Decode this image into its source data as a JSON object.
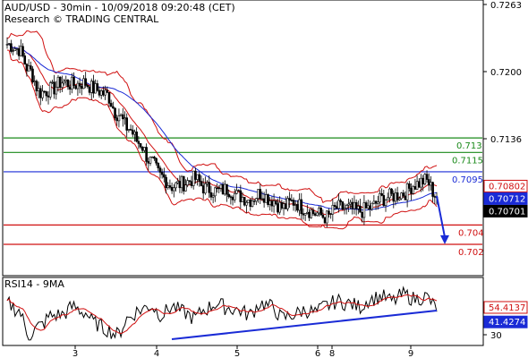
{
  "chart_data": {
    "type": "line",
    "title": "AUD/USD - 30min - 10/09/2018 09:20:48 (CET)",
    "subtitle": "Research © TRADING CENTRAL",
    "x_tick_labels": [
      "3",
      "4",
      "5",
      "6",
      "8",
      "9"
    ],
    "price_axis": {
      "ylim": [
        0.6995,
        0.7268
      ],
      "ticks": [
        "0.7263",
        "0.7200",
        "0.7136"
      ]
    },
    "levels": [
      {
        "label": "0.713",
        "value": 0.713,
        "color": "#1a8a1a"
      },
      {
        "label": "0.7115",
        "value": 0.7115,
        "color": "#1a8a1a"
      },
      {
        "label": "0.7095",
        "value": 0.7095,
        "color": "#1a2bd6"
      },
      {
        "label": "0.704",
        "value": 0.704,
        "color": "#d01010"
      },
      {
        "label": "0.702",
        "value": 0.702,
        "color": "#d01010"
      }
    ],
    "price_boxes": [
      {
        "label": "0.70802",
        "value": 0.70802,
        "bg": "#ffffff",
        "fg": "#d01010",
        "border": "#d01010"
      },
      {
        "label": "0.70712",
        "value": 0.70712,
        "bg": "#1a2bd6",
        "fg": "#ffffff",
        "border": "#1a2bd6"
      },
      {
        "label": "0.70701",
        "value": 0.70701,
        "bg": "#000000",
        "fg": "#ffffff",
        "border": "#000000"
      }
    ],
    "price_series_approx": [
      0.7227,
      0.7222,
      0.72,
      0.7177,
      0.718,
      0.7188,
      0.7185,
      0.7187,
      0.718,
      0.7175,
      0.7155,
      0.714,
      0.7125,
      0.7106,
      0.709,
      0.708,
      0.7083,
      0.7088,
      0.7078,
      0.7075,
      0.7077,
      0.707,
      0.7066,
      0.7073,
      0.7066,
      0.7058,
      0.7064,
      0.7057,
      0.7052,
      0.7048,
      0.7058,
      0.7057,
      0.7054,
      0.7058,
      0.7067,
      0.707,
      0.7073,
      0.7082,
      0.7086,
      0.707
    ],
    "rsi": {
      "label": "RSI14 - 9MA",
      "ylim": [
        22,
        78
      ],
      "tick_label": "30",
      "tick_value": 30,
      "rsi_series_approx": [
        58,
        52,
        30,
        38,
        47,
        48,
        55,
        50,
        40,
        35,
        30,
        45,
        52,
        56,
        48,
        55,
        50,
        45,
        53,
        58,
        54,
        52,
        48,
        58,
        55,
        45,
        48,
        52,
        50,
        56,
        60,
        58,
        55,
        62,
        64,
        60,
        66,
        62,
        64,
        54
      ],
      "boxes": [
        {
          "label": "54.4137",
          "value": 54.4137,
          "bg": "#ffffff",
          "fg": "#d01010",
          "border": "#d01010"
        },
        {
          "label": "41.4274",
          "value": 41.4274,
          "bg": "#1a2bd6",
          "fg": "#ffffff",
          "border": "#1a2bd6"
        }
      ]
    }
  }
}
